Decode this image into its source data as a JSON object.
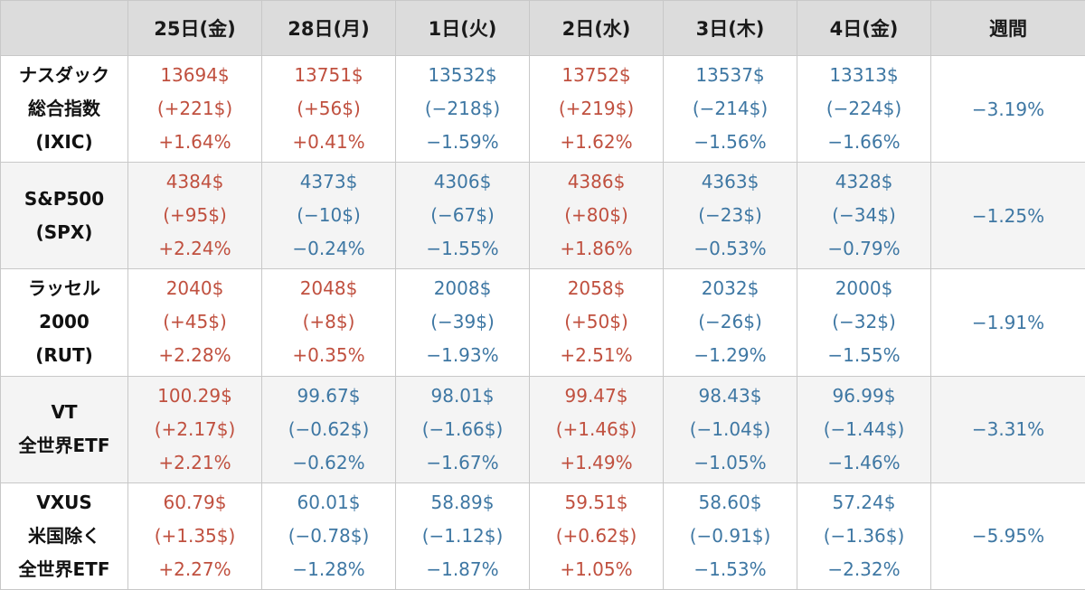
{
  "table": {
    "headers": [
      "",
      "25日(金)",
      "28日(月)",
      "1日(火)",
      "2日(水)",
      "3日(木)",
      "4日(金)",
      "週間"
    ],
    "colors": {
      "up": "#c0503f",
      "down": "#3e77a3"
    },
    "rows": [
      {
        "name": [
          "ナスダック",
          "総合指数",
          "(IXIC)"
        ],
        "cells": [
          {
            "dir": "up",
            "price": "13694$",
            "change": "(+221$)",
            "pct": "+1.64%"
          },
          {
            "dir": "up",
            "price": "13751$",
            "change": "(+56$)",
            "pct": "+0.41%"
          },
          {
            "dir": "down",
            "price": "13532$",
            "change": "(−218$)",
            "pct": "−1.59%"
          },
          {
            "dir": "up",
            "price": "13752$",
            "change": "(+219$)",
            "pct": "+1.62%"
          },
          {
            "dir": "down",
            "price": "13537$",
            "change": "(−214$)",
            "pct": "−1.56%"
          },
          {
            "dir": "down",
            "price": "13313$",
            "change": "(−224$)",
            "pct": "−1.66%"
          }
        ],
        "weekly": "−3.19%"
      },
      {
        "name": [
          "S&P500",
          "(SPX)"
        ],
        "cells": [
          {
            "dir": "up",
            "price": "4384$",
            "change": "(+95$)",
            "pct": "+2.24%"
          },
          {
            "dir": "down",
            "price": "4373$",
            "change": "(−10$)",
            "pct": "−0.24%"
          },
          {
            "dir": "down",
            "price": "4306$",
            "change": "(−67$)",
            "pct": "−1.55%"
          },
          {
            "dir": "up",
            "price": "4386$",
            "change": "(+80$)",
            "pct": "+1.86%"
          },
          {
            "dir": "down",
            "price": "4363$",
            "change": "(−23$)",
            "pct": "−0.53%"
          },
          {
            "dir": "down",
            "price": "4328$",
            "change": "(−34$)",
            "pct": "−0.79%"
          }
        ],
        "weekly": "−1.25%"
      },
      {
        "name": [
          "ラッセル",
          "2000",
          "(RUT)"
        ],
        "cells": [
          {
            "dir": "up",
            "price": "2040$",
            "change": "(+45$)",
            "pct": "+2.28%"
          },
          {
            "dir": "up",
            "price": "2048$",
            "change": "(+8$)",
            "pct": "+0.35%"
          },
          {
            "dir": "down",
            "price": "2008$",
            "change": "(−39$)",
            "pct": "−1.93%"
          },
          {
            "dir": "up",
            "price": "2058$",
            "change": "(+50$)",
            "pct": "+2.51%"
          },
          {
            "dir": "down",
            "price": "2032$",
            "change": "(−26$)",
            "pct": "−1.29%"
          },
          {
            "dir": "down",
            "price": "2000$",
            "change": "(−32$)",
            "pct": "−1.55%"
          }
        ],
        "weekly": "−1.91%"
      },
      {
        "name": [
          "VT",
          "全世界ETF"
        ],
        "cells": [
          {
            "dir": "up",
            "price": "100.29$",
            "change": "(+2.17$)",
            "pct": "+2.21%"
          },
          {
            "dir": "down",
            "price": "99.67$",
            "change": "(−0.62$)",
            "pct": "−0.62%"
          },
          {
            "dir": "down",
            "price": "98.01$",
            "change": "(−1.66$)",
            "pct": "−1.67%"
          },
          {
            "dir": "up",
            "price": "99.47$",
            "change": "(+1.46$)",
            "pct": "+1.49%"
          },
          {
            "dir": "down",
            "price": "98.43$",
            "change": "(−1.04$)",
            "pct": "−1.05%"
          },
          {
            "dir": "down",
            "price": "96.99$",
            "change": "(−1.44$)",
            "pct": "−1.46%"
          }
        ],
        "weekly": "−3.31%"
      },
      {
        "name": [
          "VXUS",
          "米国除く",
          "全世界ETF"
        ],
        "cells": [
          {
            "dir": "up",
            "price": "60.79$",
            "change": "(+1.35$)",
            "pct": "+2.27%"
          },
          {
            "dir": "down",
            "price": "60.01$",
            "change": "(−0.78$)",
            "pct": "−1.28%"
          },
          {
            "dir": "down",
            "price": "58.89$",
            "change": "(−1.12$)",
            "pct": "−1.87%"
          },
          {
            "dir": "up",
            "price": "59.51$",
            "change": "(+0.62$)",
            "pct": "+1.05%"
          },
          {
            "dir": "down",
            "price": "58.60$",
            "change": "(−0.91$)",
            "pct": "−1.53%"
          },
          {
            "dir": "down",
            "price": "57.24$",
            "change": "(−1.36$)",
            "pct": "−2.32%"
          }
        ],
        "weekly": "−5.95%"
      }
    ]
  }
}
